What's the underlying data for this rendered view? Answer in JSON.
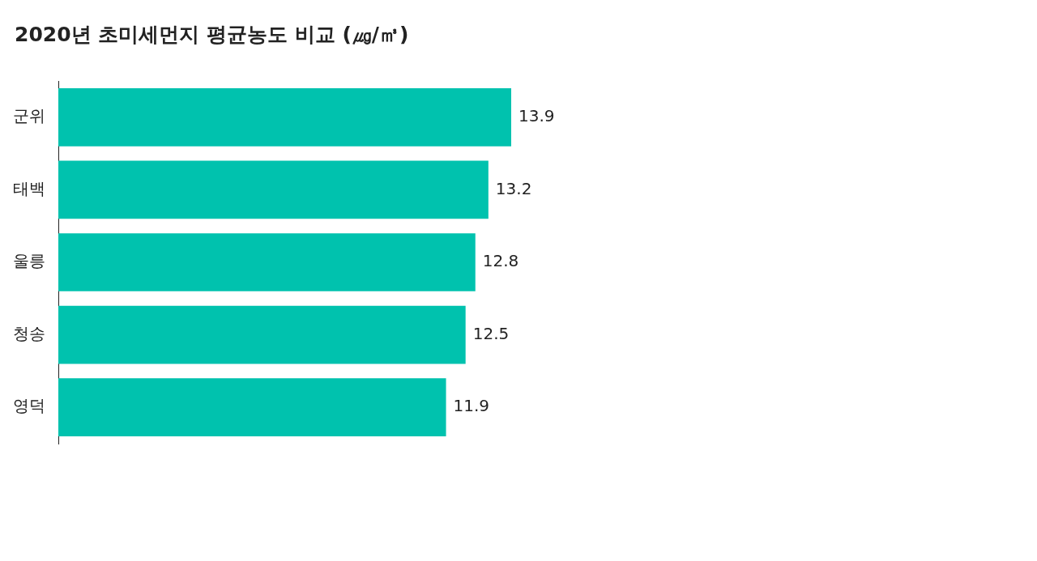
{
  "chart_data": {
    "type": "bar",
    "orientation": "horizontal",
    "title": "2020년 초미세먼지 평균농도 비교 (㎍/㎥)",
    "categories": [
      "군위",
      "태백",
      "울릉",
      "청송",
      "영덕"
    ],
    "values": [
      13.9,
      13.2,
      12.8,
      12.5,
      11.9
    ],
    "color": "#00c2ae",
    "data_labels": true,
    "grid": false,
    "legend": false
  }
}
